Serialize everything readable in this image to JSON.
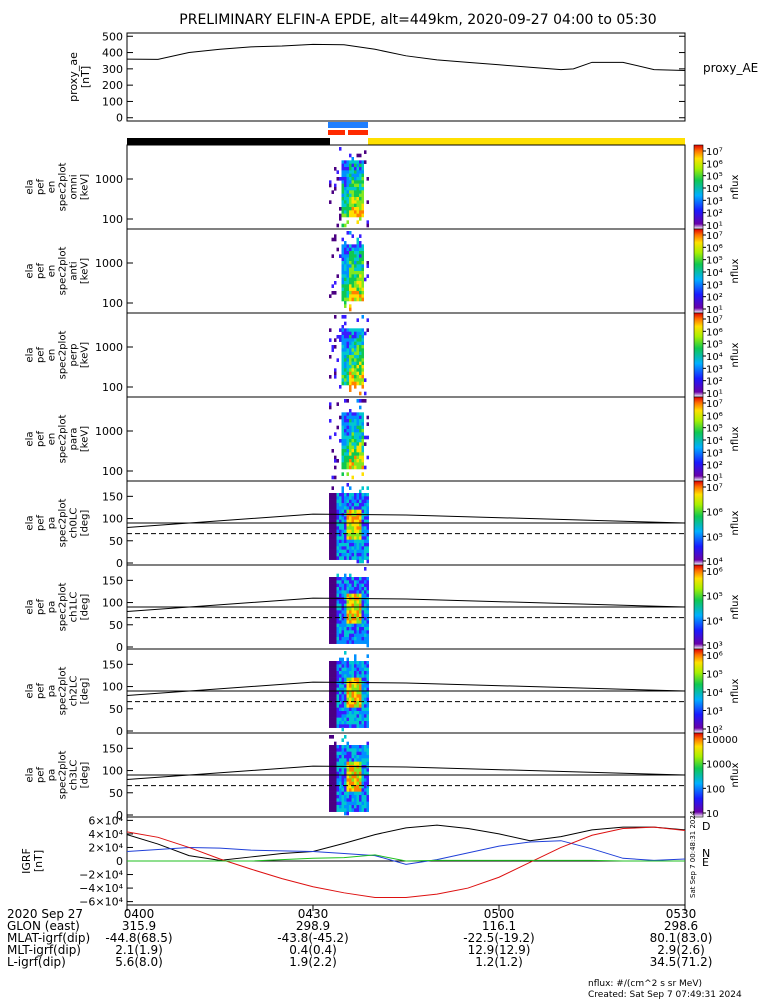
{
  "title": "PRELIMINARY ELFIN-A EPDE, alt=449km, 2020-09-27 04:00 to 05:30",
  "colors": {
    "black": "#000000",
    "bar_yellow": "#ffe000",
    "bar_blue": "#1e7fff",
    "bar_red": "#ff2a00",
    "grf_x": "#000000",
    "grf_y": "#1f3fd8",
    "grf_z": "#dd1010",
    "grf_green": "#1fbf1f"
  },
  "chart_data": [
    {
      "type": "line",
      "panel": "proxy_ae",
      "ylabel_lines": [
        "proxy_ae",
        "[nT]"
      ],
      "legend": "proxy_AE",
      "ylim": [
        -20,
        520
      ],
      "yticks": [
        "500",
        "400",
        "300",
        "200",
        "100",
        "0"
      ],
      "ytick_values": [
        500,
        400,
        300,
        200,
        100,
        0
      ],
      "x_minutes": [
        0,
        5,
        10,
        15,
        20,
        25,
        30,
        35,
        40,
        45,
        50,
        55,
        60,
        65,
        70,
        72,
        75,
        80,
        85,
        90
      ],
      "values": [
        360,
        358,
        400,
        420,
        435,
        440,
        450,
        448,
        420,
        380,
        355,
        340,
        325,
        310,
        295,
        300,
        340,
        340,
        295,
        290
      ]
    },
    {
      "type": "heatmap",
      "panel": "spec_omni",
      "ylabel_lines": [
        "ela",
        "pef",
        "en",
        "spec2plot",
        "omni",
        "[keV]"
      ],
      "yticks": [
        "1000",
        "100"
      ],
      "colorbar_ticks": [
        "10⁷",
        "10⁶",
        "10⁵",
        "10⁴",
        "10³",
        "10²",
        "10¹"
      ],
      "colorbar_label": "nflux"
    },
    {
      "type": "heatmap",
      "panel": "spec_anti",
      "ylabel_lines": [
        "ela",
        "pef",
        "en",
        "spec2plot",
        "anti",
        "[keV]"
      ],
      "yticks": [
        "1000",
        "100"
      ],
      "colorbar_ticks": [
        "10⁷",
        "10⁶",
        "10⁵",
        "10⁴",
        "10³",
        "10²",
        "10¹"
      ],
      "colorbar_label": "nflux"
    },
    {
      "type": "heatmap",
      "panel": "spec_perp",
      "ylabel_lines": [
        "ela",
        "pef",
        "en",
        "spec2plot",
        "perp",
        "[keV]"
      ],
      "yticks": [
        "1000",
        "100"
      ],
      "colorbar_ticks": [
        "10⁷",
        "10⁶",
        "10⁵",
        "10⁴",
        "10³",
        "10²",
        "10¹"
      ],
      "colorbar_label": "nflux"
    },
    {
      "type": "heatmap",
      "panel": "spec_para",
      "ylabel_lines": [
        "ela",
        "pef",
        "en",
        "spec2plot",
        "para",
        "[keV]"
      ],
      "yticks": [
        "1000",
        "100"
      ],
      "colorbar_ticks": [
        "10⁷",
        "10⁶",
        "10⁵",
        "10⁴",
        "10³",
        "10²",
        "10¹"
      ],
      "colorbar_label": "nflux"
    },
    {
      "type": "heatmap",
      "panel": "pa_ch0",
      "ylabel_lines": [
        "ela",
        "pef",
        "pa",
        "spec2plot",
        "ch0LC",
        "[deg]"
      ],
      "yticks": [
        "150",
        "100",
        "50",
        "0"
      ],
      "colorbar_ticks": [
        "10⁷",
        "10⁶",
        "10⁵",
        "10⁴"
      ],
      "colorbar_label": "nflux"
    },
    {
      "type": "heatmap",
      "panel": "pa_ch1",
      "ylabel_lines": [
        "ela",
        "pef",
        "pa",
        "spec2plot",
        "ch1LC",
        "[deg]"
      ],
      "yticks": [
        "150",
        "100",
        "50",
        "0"
      ],
      "colorbar_ticks": [
        "10⁶",
        "10⁵",
        "10⁴",
        "10³"
      ],
      "colorbar_label": "nflux"
    },
    {
      "type": "heatmap",
      "panel": "pa_ch2",
      "ylabel_lines": [
        "ela",
        "pef",
        "pa",
        "spec2plot",
        "ch2LC",
        "[deg]"
      ],
      "yticks": [
        "150",
        "100",
        "50",
        "0"
      ],
      "colorbar_ticks": [
        "10⁶",
        "10⁵",
        "10⁴",
        "10³",
        "10²"
      ],
      "colorbar_label": "nflux"
    },
    {
      "type": "heatmap",
      "panel": "pa_ch3",
      "ylabel_lines": [
        "ela",
        "pef",
        "pa",
        "spec2plot",
        "ch3LC",
        "[deg]"
      ],
      "yticks": [
        "150",
        "100",
        "50",
        "0"
      ],
      "colorbar_ticks": [
        "10000",
        "1000",
        "100",
        "10"
      ],
      "colorbar_label": "nflux"
    },
    {
      "type": "line",
      "panel": "igrf",
      "ylabel_lines": [
        "IGRF",
        "[nT]"
      ],
      "yticks": [
        "6×10⁴",
        "4×10⁴",
        "2×10⁴",
        "0",
        "−2×10⁴",
        "−4×10⁴",
        "−6×10⁴"
      ],
      "ytick_values": [
        60000,
        40000,
        20000,
        0,
        -20000,
        -40000,
        -60000
      ],
      "ylim": [
        -65000,
        65000
      ],
      "legend": [
        "D",
        "N",
        "E"
      ],
      "x_minutes": [
        0,
        5,
        10,
        15,
        20,
        25,
        30,
        35,
        40,
        45,
        50,
        55,
        60,
        65,
        70,
        75,
        80,
        85,
        90
      ],
      "series": [
        {
          "values": [
            39000,
            25000,
            8000,
            1000,
            6000,
            11000,
            14000,
            26000,
            39000,
            49000,
            53000,
            48000,
            40000,
            30000,
            36000,
            46000,
            50000,
            50000,
            46000
          ]
        },
        {
          "values": [
            14000,
            17000,
            20000,
            19000,
            16000,
            15000,
            14000,
            11000,
            8000,
            -5000,
            2000,
            12000,
            22000,
            28000,
            30000,
            18000,
            4000,
            1000,
            3000
          ]
        },
        {
          "values": [
            43000,
            35000,
            20000,
            3000,
            -12000,
            -26000,
            -38000,
            -47000,
            -54000,
            -54000,
            -49000,
            -40000,
            -24000,
            -2000,
            20000,
            38000,
            48000,
            50000,
            45000
          ]
        },
        {
          "values": [
            0,
            0,
            0,
            0,
            0,
            2000,
            4000,
            5000,
            9000,
            0,
            1000,
            1000,
            1000,
            1000,
            1000,
            1000,
            0,
            0,
            0
          ]
        }
      ],
      "side_annotation": "Sat Sep  7 00:48:31 2024"
    }
  ],
  "footer": {
    "row_labels": [
      "2020 Sep 27",
      "GLON (east)",
      "MLAT-igrf(dip)",
      "MLT-igrf(dip)",
      "L-igrf(dip)"
    ],
    "columns": [
      {
        "time": "0400",
        "values": [
          "315.9",
          "-44.8(68.5)",
          "2.1(1.9)",
          "5.6(8.0)"
        ]
      },
      {
        "time": "0430",
        "values": [
          "298.9",
          "-43.8(-45.2)",
          "0.4(0.4)",
          "1.9(2.2)"
        ]
      },
      {
        "time": "0500",
        "values": [
          "116.1",
          "-22.5(-19.2)",
          "12.9(12.9)",
          "1.2(1.2)"
        ]
      },
      {
        "time": "0530",
        "values": [
          "298.6",
          "80.1(83.0)",
          "2.9(2.6)",
          "34.5(71.2)"
        ]
      }
    ],
    "units_note": "nflux: #/(cm^2 s sr MeV)",
    "created": "Created: Sat Sep  7 07:49:31 2024"
  }
}
